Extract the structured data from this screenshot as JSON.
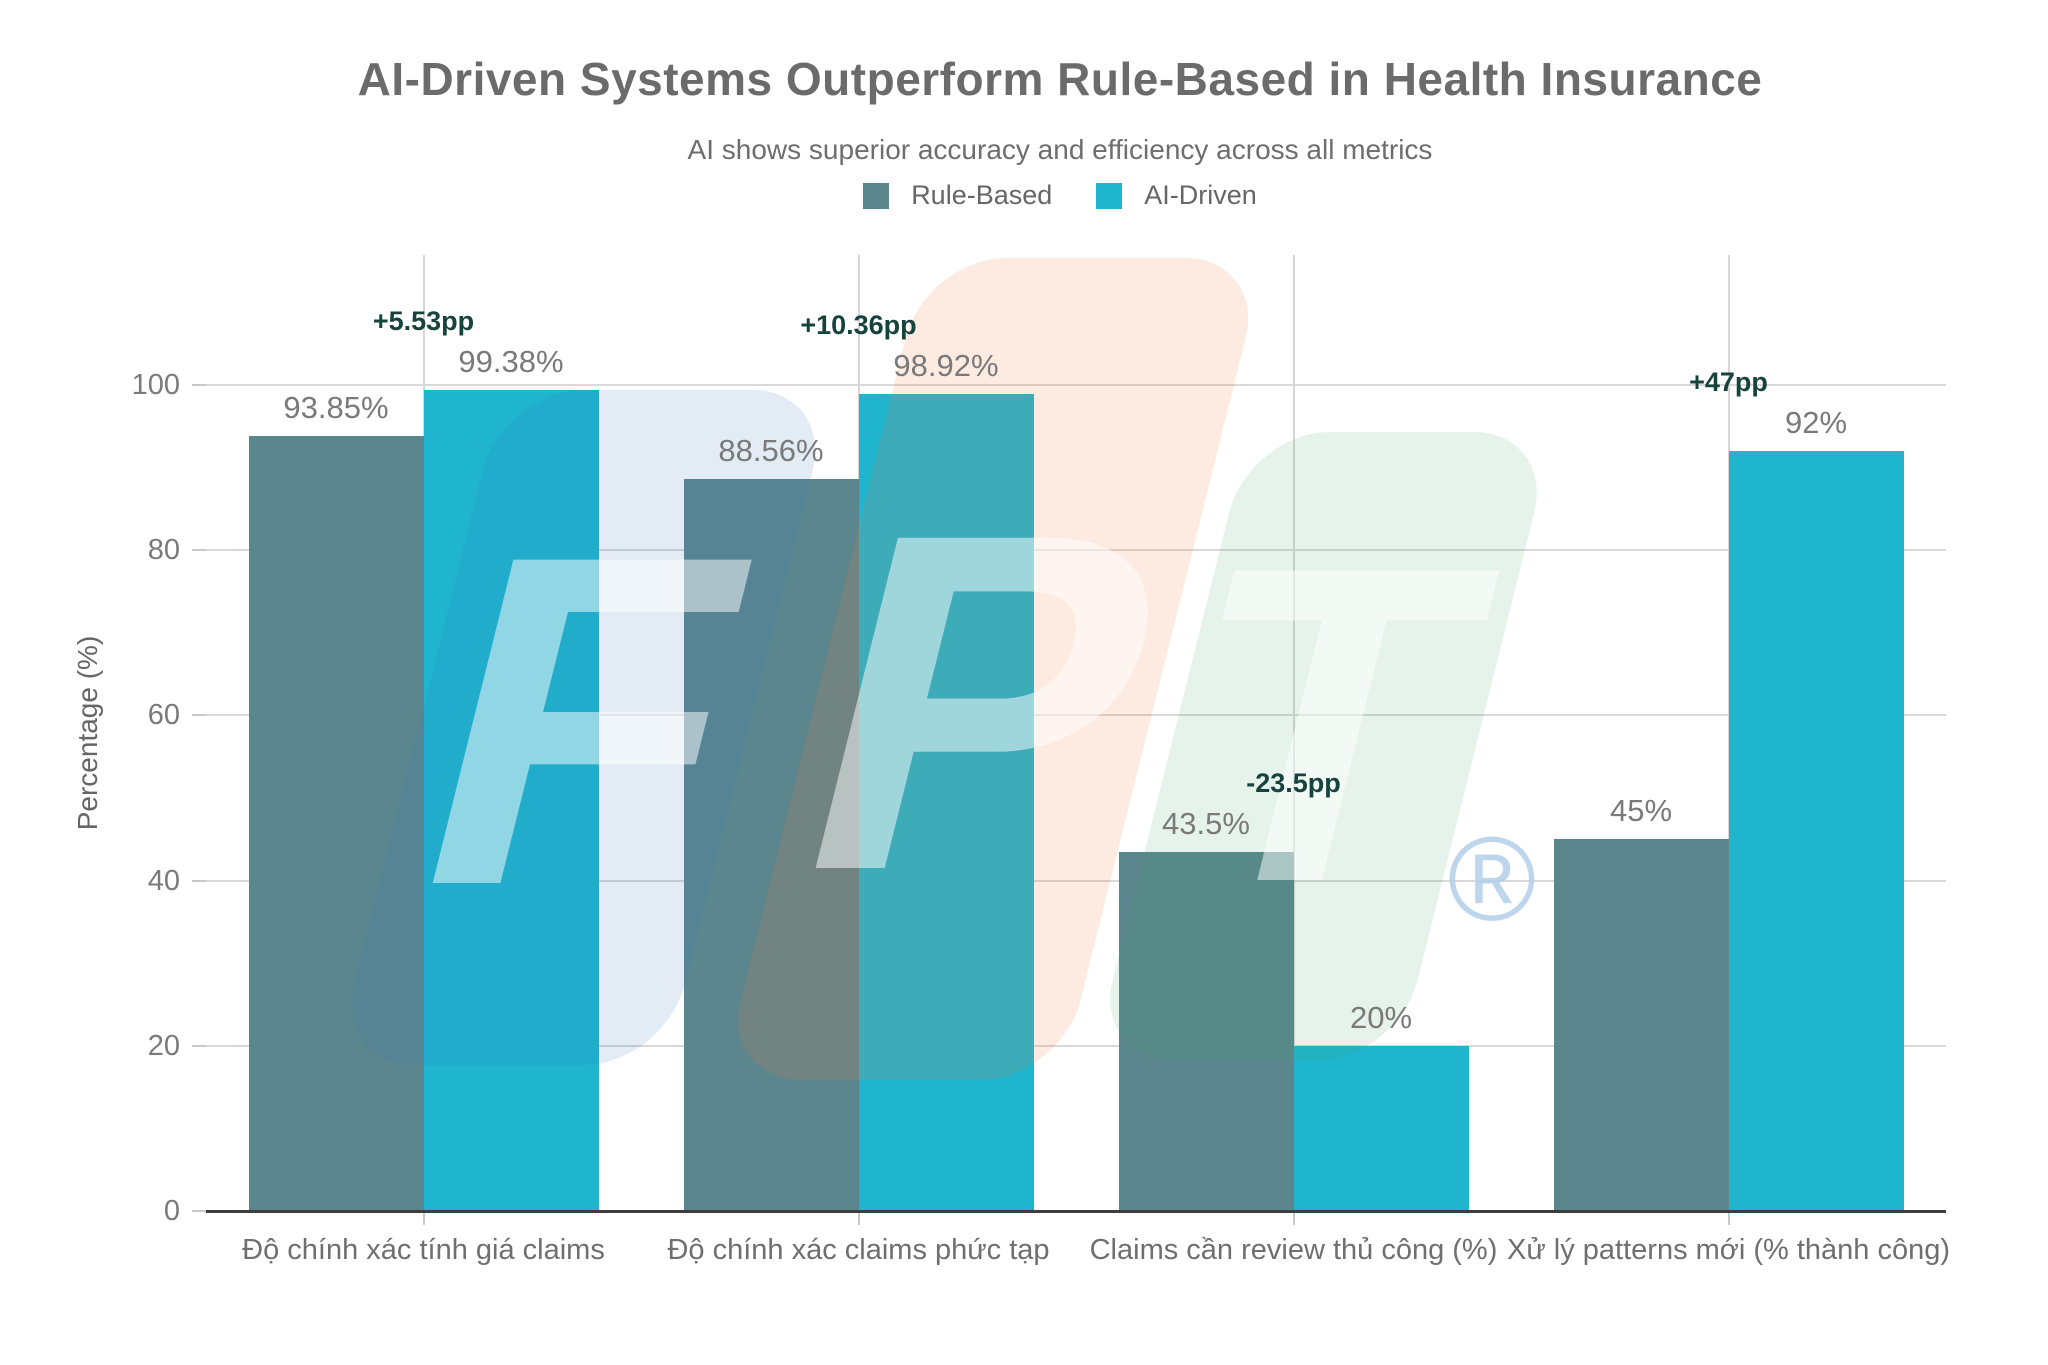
{
  "chart_data": {
    "type": "bar",
    "title": "AI-Driven Systems Outperform Rule-Based in Health Insurance",
    "subtitle": "AI shows superior accuracy and efficiency across all metrics",
    "categories": [
      "Độ chính xác tính giá claims",
      "Độ chính xác claims phức tạp",
      "Claims cần review thủ công (%)",
      "Xử lý patterns mới (% thành công)"
    ],
    "series": [
      {
        "name": "Rule-Based",
        "color": "#5b868e",
        "values": [
          93.85,
          88.56,
          43.5,
          45
        ],
        "labels": [
          "93.85%",
          "88.56%",
          "43.5%",
          "45%"
        ]
      },
      {
        "name": "AI-Driven",
        "color": "#1fb5ce",
        "values": [
          99.38,
          98.92,
          20,
          92
        ],
        "labels": [
          "99.38%",
          "98.92%",
          "20%",
          "92%"
        ]
      }
    ],
    "annotations": [
      {
        "category_index": 0,
        "text": "+5.53pp"
      },
      {
        "category_index": 1,
        "text": "+10.36pp"
      },
      {
        "category_index": 2,
        "text": "-23.5pp"
      },
      {
        "category_index": 3,
        "text": "+47pp"
      }
    ],
    "ylabel": "Percentage (%)",
    "y_ticks": [
      0,
      20,
      40,
      60,
      80,
      100
    ],
    "ylim": [
      0,
      100
    ],
    "grid": true,
    "legend_position": "top-center"
  },
  "style": {
    "title_color": "#6b6b6b",
    "subtitle_color": "#6e6e6e",
    "legend_text_color": "#666666",
    "tick_label_color": "#7a7a7a",
    "x_label_color": "#6f6f6f",
    "value_label_color": "#7a7a7a",
    "annotation_color": "#17433d",
    "gridline_color": "#d9d9d9",
    "v_gridline_color": "#d6d6d6",
    "minor_tick_color": "#c9c9c9",
    "axis_line_color": "#3d3d3d",
    "background": "#ffffff"
  },
  "watermark": {
    "name": "fpt-logo",
    "letters": [
      "F",
      "P",
      "T"
    ],
    "block_colors": [
      "#3a76b5",
      "#ef7b3d",
      "#3aa568"
    ],
    "registered_mark": "®",
    "registered_mark_color": "#b3cfe9"
  }
}
